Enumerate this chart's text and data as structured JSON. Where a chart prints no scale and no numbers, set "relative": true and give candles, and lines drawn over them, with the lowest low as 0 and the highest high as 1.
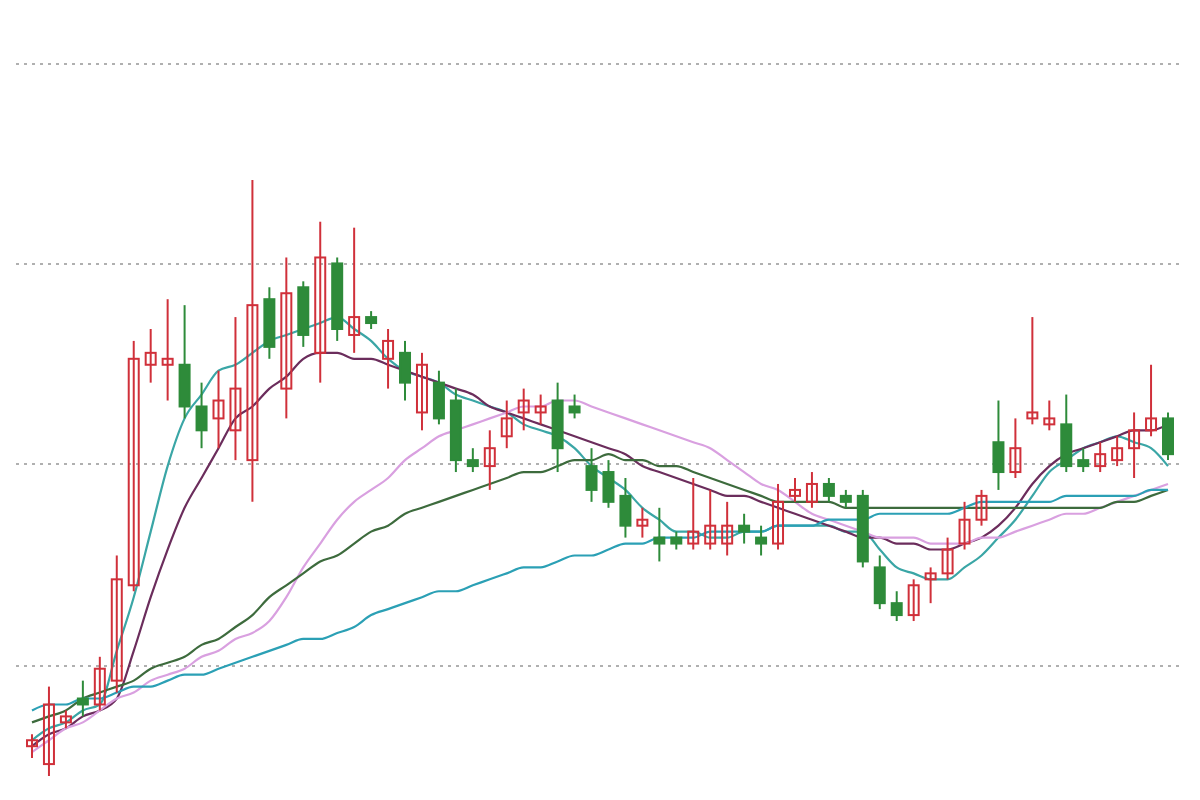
{
  "chart_data": {
    "type": "candlestick",
    "relative": true,
    "grid": "y",
    "categories": [
      null,
      null,
      null,
      null,
      null,
      null,
      null,
      null,
      null,
      null,
      null,
      null,
      null,
      null,
      null,
      null,
      null,
      null,
      null,
      null,
      null,
      null,
      null,
      null,
      null,
      null,
      null,
      null,
      null,
      null,
      null,
      null,
      null,
      null,
      null,
      null,
      null,
      null,
      null,
      null,
      null,
      null,
      null,
      null,
      null,
      null,
      null,
      null,
      null,
      null,
      null,
      null,
      null,
      null,
      null,
      null,
      null,
      null,
      null,
      null,
      null,
      null,
      null,
      null,
      null,
      null,
      null,
      null
    ],
    "ohlc": [
      [
        0.05,
        0.07,
        0.03,
        0.06
      ],
      [
        0.02,
        0.15,
        0,
        0.12
      ],
      [
        0.09,
        0.11,
        0.08,
        0.1
      ],
      [
        0.13,
        0.16,
        0.1,
        0.12
      ],
      [
        0.12,
        0.2,
        0.11,
        0.18
      ],
      [
        0.16,
        0.37,
        0.14,
        0.33
      ],
      [
        0.32,
        0.73,
        0.31,
        0.7
      ],
      [
        0.69,
        0.75,
        0.66,
        0.71
      ],
      [
        0.69,
        0.8,
        0.63,
        0.7
      ],
      [
        0.69,
        0.79,
        0.6,
        0.62
      ],
      [
        0.62,
        0.66,
        0.55,
        0.58
      ],
      [
        0.6,
        0.68,
        0.55,
        0.63
      ],
      [
        0.58,
        0.77,
        0.53,
        0.65
      ],
      [
        0.53,
        1,
        0.46,
        0.79
      ],
      [
        0.8,
        0.82,
        0.7,
        0.72
      ],
      [
        0.65,
        0.87,
        0.6,
        0.81
      ],
      [
        0.82,
        0.83,
        0.72,
        0.74
      ],
      [
        0.71,
        0.93,
        0.66,
        0.87
      ],
      [
        0.86,
        0.87,
        0.73,
        0.75
      ],
      [
        0.74,
        0.92,
        0.71,
        0.77
      ],
      [
        0.77,
        0.78,
        0.75,
        0.76
      ],
      [
        0.7,
        0.75,
        0.65,
        0.73
      ],
      [
        0.71,
        0.73,
        0.63,
        0.66
      ],
      [
        0.61,
        0.71,
        0.58,
        0.69
      ],
      [
        0.66,
        0.68,
        0.59,
        0.6
      ],
      [
        0.63,
        0.65,
        0.51,
        0.53
      ],
      [
        0.53,
        0.55,
        0.51,
        0.52
      ],
      [
        0.52,
        0.58,
        0.48,
        0.55
      ],
      [
        0.57,
        0.63,
        0.55,
        0.6
      ],
      [
        0.61,
        0.65,
        0.58,
        0.63
      ],
      [
        0.61,
        0.64,
        0.59,
        0.62
      ],
      [
        0.63,
        0.66,
        0.51,
        0.55
      ],
      [
        0.62,
        0.64,
        0.6,
        0.61
      ],
      [
        0.52,
        0.55,
        0.46,
        0.48
      ],
      [
        0.51,
        0.53,
        0.45,
        0.46
      ],
      [
        0.47,
        0.5,
        0.4,
        0.42
      ],
      [
        0.42,
        0.45,
        0.4,
        0.43
      ],
      [
        0.4,
        0.45,
        0.36,
        0.39
      ],
      [
        0.4,
        0.41,
        0.38,
        0.39
      ],
      [
        0.39,
        0.5,
        0.38,
        0.41
      ],
      [
        0.39,
        0.48,
        0.38,
        0.42
      ],
      [
        0.39,
        0.46,
        0.37,
        0.42
      ],
      [
        0.42,
        0.44,
        0.39,
        0.41
      ],
      [
        0.4,
        0.42,
        0.37,
        0.39
      ],
      [
        0.39,
        0.49,
        0.38,
        0.46
      ],
      [
        0.47,
        0.5,
        0.46,
        0.48
      ],
      [
        0.46,
        0.51,
        0.45,
        0.49
      ],
      [
        0.49,
        0.5,
        0.46,
        0.47
      ],
      [
        0.47,
        0.48,
        0.45,
        0.46
      ],
      [
        0.47,
        0.48,
        0.35,
        0.36
      ],
      [
        0.35,
        0.37,
        0.28,
        0.29
      ],
      [
        0.29,
        0.31,
        0.26,
        0.27
      ],
      [
        0.27,
        0.33,
        0.26,
        0.32
      ],
      [
        0.33,
        0.35,
        0.29,
        0.34
      ],
      [
        0.34,
        0.4,
        0.33,
        0.38
      ],
      [
        0.39,
        0.46,
        0.38,
        0.43
      ],
      [
        0.43,
        0.48,
        0.42,
        0.47
      ],
      [
        0.56,
        0.63,
        0.48,
        0.51
      ],
      [
        0.51,
        0.6,
        0.5,
        0.55
      ],
      [
        0.6,
        0.77,
        0.59,
        0.61
      ],
      [
        0.59,
        0.63,
        0.58,
        0.6
      ],
      [
        0.59,
        0.64,
        0.51,
        0.52
      ],
      [
        0.53,
        0.55,
        0.51,
        0.52
      ],
      [
        0.52,
        0.56,
        0.51,
        0.54
      ],
      [
        0.53,
        0.57,
        0.52,
        0.55
      ],
      [
        0.55,
        0.61,
        0.5,
        0.58
      ],
      [
        0.58,
        0.69,
        0.57,
        0.6
      ],
      [
        0.6,
        0.61,
        0.53,
        0.54
      ]
    ],
    "series": [
      {
        "type": "line",
        "color": "#3aa6a6",
        "values": [
          0.06,
          0.08,
          0.09,
          0.11,
          0.12,
          0.21,
          0.3,
          0.41,
          0.52,
          0.6,
          0.64,
          0.68,
          0.69,
          0.71,
          0.73,
          0.74,
          0.75,
          0.76,
          0.77,
          0.75,
          0.73,
          0.7,
          0.68,
          0.67,
          0.66,
          0.64,
          0.63,
          0.62,
          0.61,
          0.59,
          0.58,
          0.57,
          0.55,
          0.52,
          0.5,
          0.48,
          0.45,
          0.43,
          0.41,
          0.41,
          0.4,
          0.4,
          0.41,
          0.41,
          0.42,
          0.42,
          0.42,
          0.42,
          0.41,
          0.41,
          0.38,
          0.35,
          0.34,
          0.33,
          0.33,
          0.35,
          0.37,
          0.4,
          0.43,
          0.47,
          0.51,
          0.53,
          0.55,
          0.56,
          0.57,
          0.56,
          0.55,
          0.52
        ]
      },
      {
        "type": "line",
        "color": "#6b2d5c",
        "values": [
          0.05,
          0.07,
          0.08,
          0.1,
          0.11,
          0.13,
          0.21,
          0.3,
          0.38,
          0.45,
          0.5,
          0.55,
          0.6,
          0.62,
          0.65,
          0.67,
          0.7,
          0.71,
          0.71,
          0.7,
          0.7,
          0.69,
          0.68,
          0.67,
          0.66,
          0.65,
          0.64,
          0.62,
          0.61,
          0.6,
          0.59,
          0.58,
          0.57,
          0.56,
          0.55,
          0.54,
          0.52,
          0.51,
          0.5,
          0.49,
          0.48,
          0.47,
          0.47,
          0.46,
          0.45,
          0.44,
          0.43,
          0.42,
          0.41,
          0.4,
          0.4,
          0.39,
          0.39,
          0.38,
          0.38,
          0.39,
          0.4,
          0.42,
          0.45,
          0.49,
          0.52,
          0.54,
          0.55,
          0.56,
          0.57,
          0.58,
          0.58,
          0.59
        ]
      },
      {
        "type": "line",
        "color": "#d9a0e0",
        "values": [
          0.04,
          0.06,
          0.08,
          0.09,
          0.11,
          0.13,
          0.14,
          0.16,
          0.17,
          0.18,
          0.2,
          0.21,
          0.23,
          0.24,
          0.26,
          0.3,
          0.35,
          0.39,
          0.43,
          0.46,
          0.48,
          0.5,
          0.53,
          0.55,
          0.57,
          0.58,
          0.59,
          0.6,
          0.61,
          0.62,
          0.62,
          0.63,
          0.63,
          0.62,
          0.61,
          0.6,
          0.59,
          0.58,
          0.57,
          0.56,
          0.55,
          0.53,
          0.51,
          0.49,
          0.48,
          0.46,
          0.44,
          0.43,
          0.42,
          0.41,
          0.4,
          0.4,
          0.4,
          0.39,
          0.39,
          0.39,
          0.4,
          0.4,
          0.41,
          0.42,
          0.43,
          0.44,
          0.44,
          0.45,
          0.46,
          0.47,
          0.48,
          0.49
        ]
      },
      {
        "type": "line",
        "color": "#3d6b3d",
        "values": [
          0.09,
          0.1,
          0.11,
          0.13,
          0.14,
          0.15,
          0.16,
          0.18,
          0.19,
          0.2,
          0.22,
          0.23,
          0.25,
          0.27,
          0.3,
          0.32,
          0.34,
          0.36,
          0.37,
          0.39,
          0.41,
          0.42,
          0.44,
          0.45,
          0.46,
          0.47,
          0.48,
          0.49,
          0.5,
          0.51,
          0.51,
          0.52,
          0.53,
          0.53,
          0.54,
          0.53,
          0.53,
          0.52,
          0.52,
          0.51,
          0.5,
          0.49,
          0.48,
          0.47,
          0.46,
          0.46,
          0.46,
          0.46,
          0.45,
          0.45,
          0.45,
          0.45,
          0.45,
          0.45,
          0.45,
          0.45,
          0.45,
          0.45,
          0.45,
          0.45,
          0.45,
          0.45,
          0.45,
          0.45,
          0.46,
          0.46,
          0.47,
          0.48
        ]
      },
      {
        "type": "line",
        "color": "#2ba0b5",
        "values": [
          0.11,
          0.12,
          0.12,
          0.13,
          0.13,
          0.14,
          0.15,
          0.15,
          0.16,
          0.17,
          0.17,
          0.18,
          0.19,
          0.2,
          0.21,
          0.22,
          0.23,
          0.23,
          0.24,
          0.25,
          0.27,
          0.28,
          0.29,
          0.3,
          0.31,
          0.31,
          0.32,
          0.33,
          0.34,
          0.35,
          0.35,
          0.36,
          0.37,
          0.37,
          0.38,
          0.39,
          0.39,
          0.4,
          0.4,
          0.4,
          0.41,
          0.41,
          0.41,
          0.41,
          0.42,
          0.42,
          0.42,
          0.43,
          0.43,
          0.43,
          0.44,
          0.44,
          0.44,
          0.44,
          0.44,
          0.45,
          0.46,
          0.46,
          0.46,
          0.46,
          0.46,
          0.47,
          0.47,
          0.47,
          0.47,
          0.47,
          0.48,
          0.48
        ]
      }
    ]
  }
}
